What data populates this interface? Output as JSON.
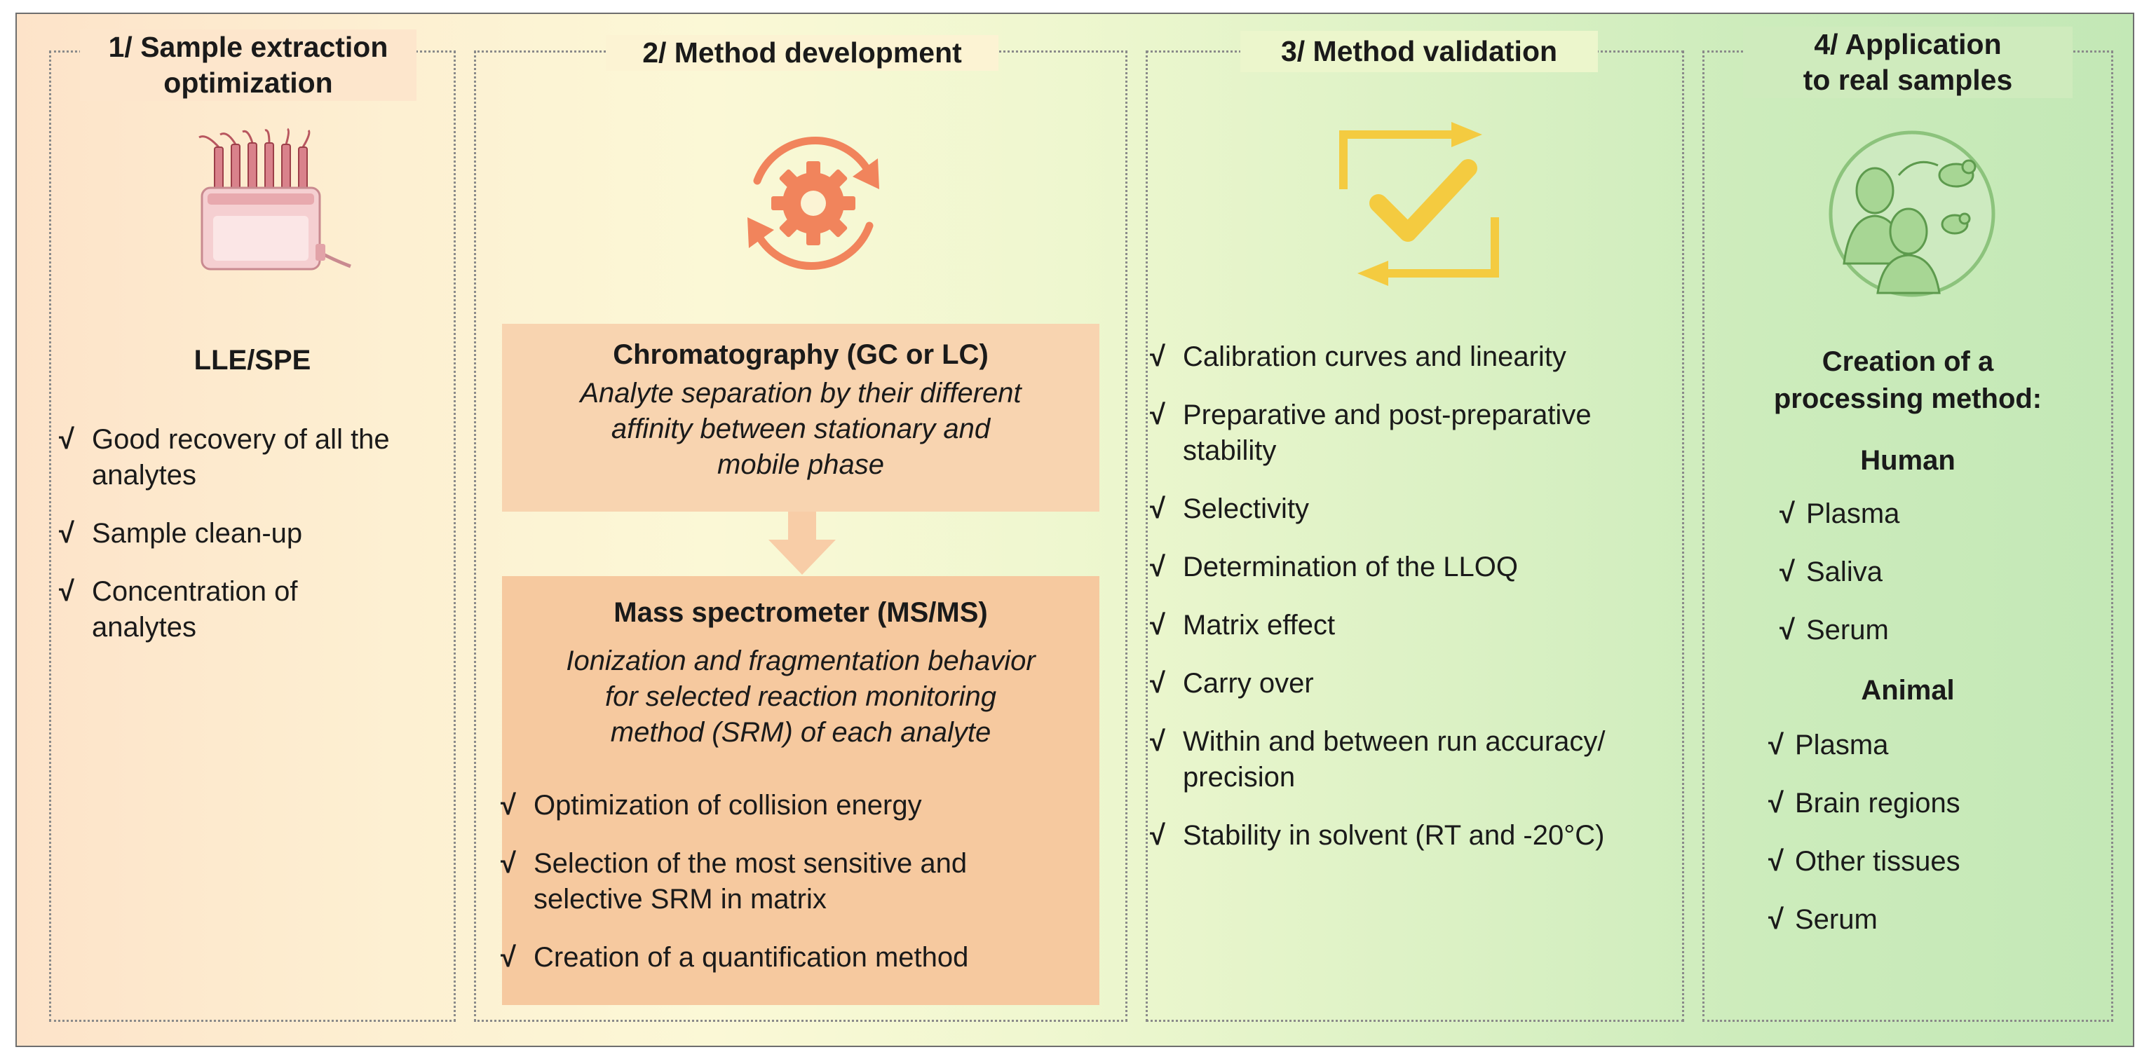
{
  "panels": [
    {
      "title_line1": "1/ Sample extraction",
      "title_line2": "optimization",
      "heading": "LLE/SPE",
      "items": [
        {
          "line1": "Good recovery of all the",
          "line2": "analytes"
        },
        {
          "line1": "Sample clean-up",
          "line2": ""
        },
        {
          "line1": "Concentration of",
          "line2": "analytes"
        }
      ]
    },
    {
      "title": "2/ Method development",
      "box1": {
        "title": "Chromatography (GC or LC)",
        "desc_lines": [
          "Analyte separation by their different",
          "affinity between stationary and",
          "mobile phase"
        ]
      },
      "box2": {
        "title": "Mass spectrometer (MS/MS)",
        "desc_lines": [
          "Ionization and fragmentation behavior",
          "for selected reaction monitoring",
          "method (SRM) of each analyte"
        ]
      },
      "items": [
        {
          "line1": "Optimization of collision energy",
          "line2": ""
        },
        {
          "line1": "Selection of the most sensitive and",
          "line2": "selective SRM in matrix"
        },
        {
          "line1": "Creation of a quantification method",
          "line2": ""
        }
      ]
    },
    {
      "title": "3/ Method validation",
      "items": [
        {
          "line1": "Calibration curves and linearity",
          "line2": ""
        },
        {
          "line1": "Preparative and post-preparative",
          "line2": "stability"
        },
        {
          "line1": "Selectivity",
          "line2": ""
        },
        {
          "line1": "Determination of the LLOQ",
          "line2": ""
        },
        {
          "line1": "Matrix effect",
          "line2": ""
        },
        {
          "line1": "Carry over",
          "line2": ""
        },
        {
          "line1": "Within and between run accuracy/",
          "line2": "precision"
        },
        {
          "line1": "Stability in solvent (RT and -20°C)",
          "line2": ""
        }
      ]
    },
    {
      "title_line1": "4/ Application",
      "title_line2": "to real samples",
      "heading_line1": "Creation of a",
      "heading_line2": "processing method:",
      "human_label": "Human",
      "human_items": [
        "Plasma",
        "Saliva",
        "Serum"
      ],
      "animal_label": "Animal",
      "animal_items": [
        "Plasma",
        "Brain regions",
        "Other tissues",
        "Serum"
      ]
    }
  ],
  "check_mark": "√",
  "icons": {
    "panel1": "spe-cartridge-icon",
    "panel2": "gear-cycle-icon",
    "panel3": "checkmark-cycle-icon",
    "panel4": "human-animal-icon"
  },
  "colors": {
    "gear": "#f1845c",
    "check_cycle": "#f4cb40",
    "box1_bg": "#f8d4b0",
    "box2_bg": "#f6c99f",
    "arrow": "#f8cda7"
  }
}
